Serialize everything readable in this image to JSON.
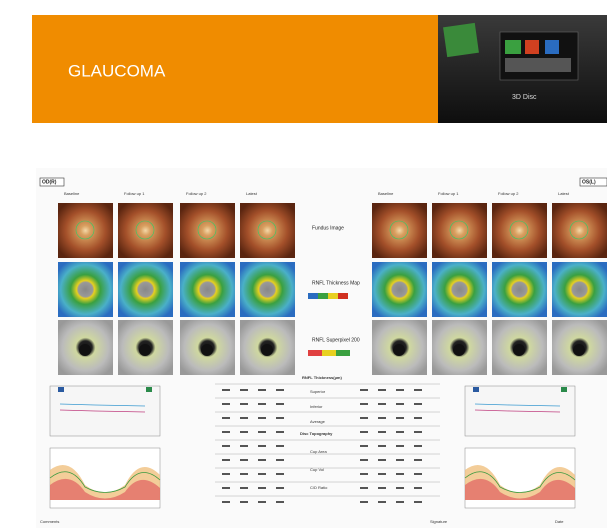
{
  "header": {
    "title": "GLAUCOMA",
    "product": "3D Disc"
  },
  "report": {
    "eyes": [
      "OD(R)",
      "OS(L)"
    ],
    "visits": [
      "Baseline",
      "Follow up 1",
      "Follow up 2",
      "Latest"
    ],
    "rows": [
      "Fundus Image",
      "RNFL Thickness Map",
      "RNFL Superpixel 200"
    ],
    "table_title": "RNFL Thickness(µm)",
    "table_rows": [
      "Superior",
      "Inferior",
      "Average"
    ],
    "topography_title": "Disc Topography",
    "topography_rows": [
      "Cup Area",
      "Cup Vol",
      "C/D Ratio"
    ],
    "footer": [
      "Comments",
      "Signature",
      "Date"
    ]
  }
}
